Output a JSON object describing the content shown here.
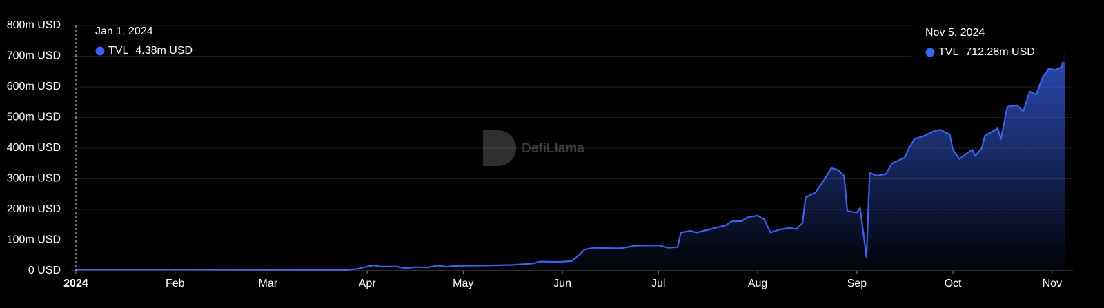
{
  "chart_data": {
    "type": "area",
    "watermark": "DefiLlama",
    "x": [
      0,
      15,
      31,
      45,
      60,
      75,
      84,
      88,
      91,
      93,
      95,
      100,
      103,
      106,
      110,
      113,
      116,
      118,
      127,
      136,
      143,
      145,
      151,
      155,
      157,
      159,
      162,
      170,
      175,
      182,
      185,
      188,
      189,
      192,
      194,
      198,
      203,
      205,
      208,
      210,
      213,
      215,
      217,
      220,
      223,
      225,
      227,
      228,
      231,
      234,
      236,
      238,
      240,
      241,
      244,
      245,
      247,
      248,
      250,
      253,
      255,
      259,
      260,
      262,
      265,
      268,
      270,
      273,
      274,
      276,
      278,
      280,
      281,
      283,
      284,
      288,
      289,
      291,
      294,
      296,
      298,
      300,
      302,
      304,
      306,
      308,
      309
    ],
    "series": [
      {
        "name": "TVL",
        "color": "#3a63f0",
        "values": [
          4.38,
          4.2,
          4,
          3.8,
          3.5,
          3,
          3,
          6,
          14,
          18,
          14,
          14,
          8,
          12,
          11,
          17,
          13,
          16,
          17,
          19,
          24,
          30,
          29,
          32,
          50,
          70,
          75,
          73,
          82,
          83,
          75,
          77,
          125,
          130,
          125,
          135,
          148,
          162,
          162,
          175,
          180,
          168,
          125,
          135,
          140,
          136,
          155,
          240,
          255,
          300,
          335,
          330,
          310,
          195,
          190,
          205,
          45,
          320,
          310,
          315,
          350,
          370,
          395,
          430,
          440,
          455,
          460,
          445,
          395,
          365,
          380,
          395,
          375,
          400,
          440,
          465,
          430,
          535,
          540,
          520,
          585,
          575,
          630,
          660,
          655,
          665,
          712.28
        ]
      }
    ],
    "xlim": [
      -1.5,
      311.5
    ],
    "xticks": [
      {
        "value": 0,
        "label": "2024"
      },
      {
        "value": 31,
        "label": "Feb"
      },
      {
        "value": 60,
        "label": "Mar"
      },
      {
        "value": 91,
        "label": "Apr"
      },
      {
        "value": 121,
        "label": "May"
      },
      {
        "value": 152,
        "label": "Jun"
      },
      {
        "value": 182,
        "label": "Jul"
      },
      {
        "value": 213,
        "label": "Aug"
      },
      {
        "value": 244,
        "label": "Sep"
      },
      {
        "value": 274,
        "label": "Oct"
      },
      {
        "value": 305,
        "label": "Nov"
      }
    ],
    "ylim": [
      0,
      800
    ],
    "yticks": [
      {
        "value": 0,
        "label": "0 USD"
      },
      {
        "value": 100,
        "label": "100m USD"
      },
      {
        "value": 200,
        "label": "200m USD"
      },
      {
        "value": 300,
        "label": "300m USD"
      },
      {
        "value": 400,
        "label": "400m USD"
      },
      {
        "value": 500,
        "label": "500m USD"
      },
      {
        "value": 600,
        "label": "600m USD"
      },
      {
        "value": 700,
        "label": "700m USD"
      },
      {
        "value": 800,
        "label": "800m USD"
      }
    ],
    "grid": true,
    "annotations": [
      {
        "date": "Jan 1, 2024",
        "x": 0,
        "value": 4.38,
        "label": "4.38m USD"
      },
      {
        "date": "Nov 5, 2024",
        "x": 309,
        "value": 712.28,
        "label": "712.28m USD"
      }
    ]
  }
}
